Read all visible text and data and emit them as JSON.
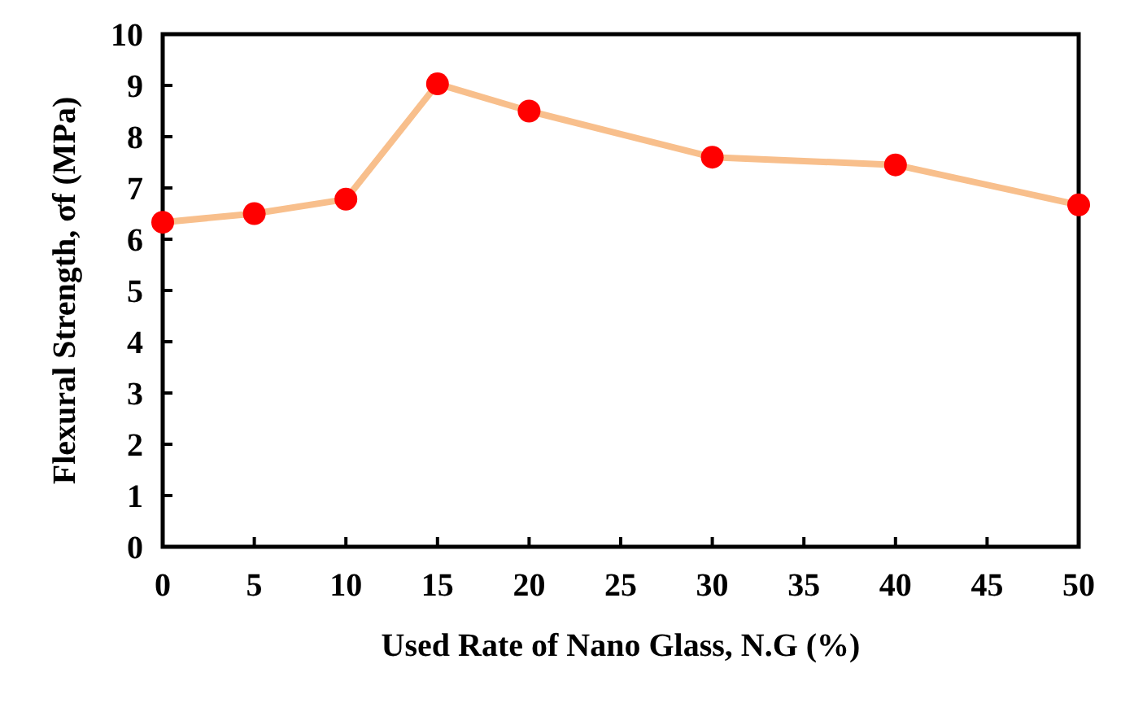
{
  "chart_data": {
    "type": "line",
    "xlabel": "Used Rate of Nano Glass, N.G (%)",
    "ylabel": "Flexural Strength, σf (MPa)",
    "x": [
      0,
      5,
      10,
      15,
      20,
      30,
      40,
      50
    ],
    "series": [
      {
        "color": "#f8bf8c",
        "marker": "none",
        "values": [
          6.33,
          6.5,
          6.78,
          9.03,
          8.5,
          7.6,
          7.45,
          6.67
        ]
      },
      {
        "type": "scatter",
        "color": "#ff0000",
        "values": [
          6.33,
          6.5,
          6.78,
          9.03,
          8.5,
          7.6,
          7.45,
          6.67
        ]
      }
    ],
    "marker": "circle",
    "xlim": [
      0,
      50
    ],
    "xticks": [
      0,
      5,
      10,
      15,
      20,
      25,
      30,
      35,
      40,
      45,
      50
    ],
    "ylim": [
      0,
      10
    ],
    "yticks": [
      0,
      1,
      2,
      3,
      4,
      5,
      6,
      7,
      8,
      9,
      10
    ],
    "grid": false
  }
}
